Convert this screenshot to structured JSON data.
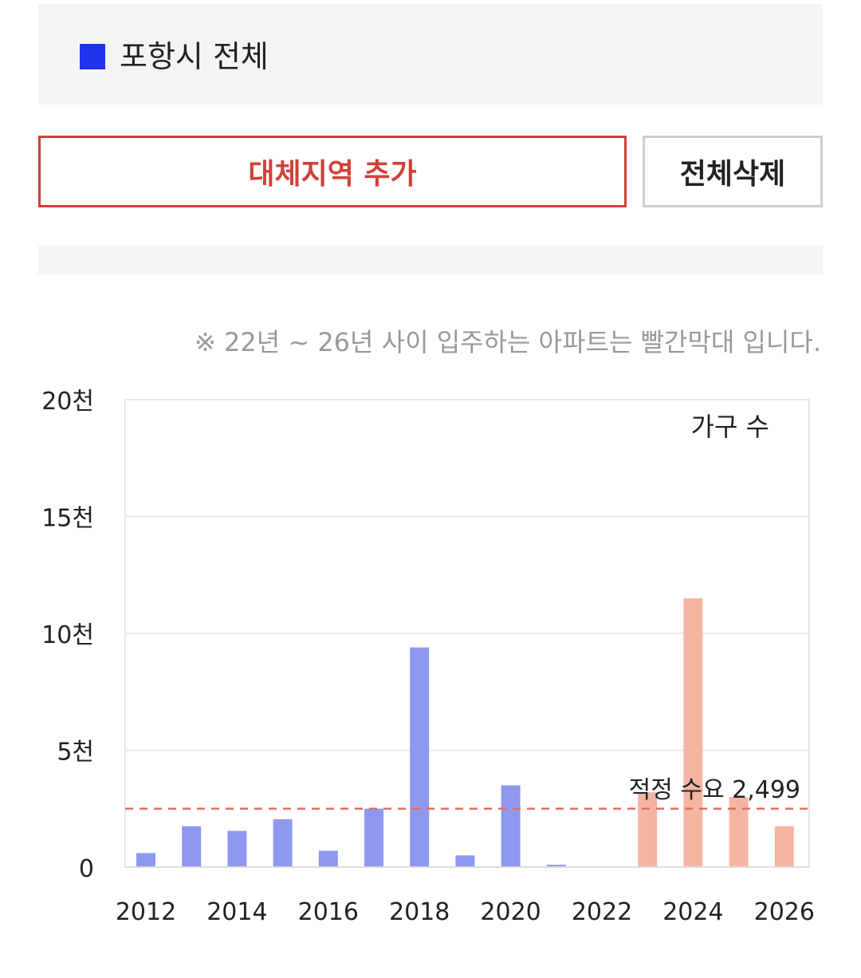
{
  "region": {
    "label": "포항시 전체",
    "color": "#2233ee"
  },
  "buttons": {
    "add_label": "대체지역 추가",
    "clear_label": "전체삭제"
  },
  "notice": "※ 22년 ~ 26년 사이 입주하는 아파트는 빨간막대 입니다.",
  "chart_data": {
    "type": "bar",
    "legend_label": "가구 수",
    "categories": [
      "2012",
      "2013",
      "2014",
      "2015",
      "2016",
      "2017",
      "2018",
      "2019",
      "2020",
      "2021",
      "2022",
      "2023",
      "2024",
      "2025",
      "2026"
    ],
    "values": [
      600,
      1750,
      1550,
      2050,
      700,
      2500,
      9400,
      500,
      3500,
      100,
      0,
      3200,
      11500,
      3000,
      1750
    ],
    "highlight_from": "2022",
    "colors": {
      "past": "#8f98ef",
      "future": "#f4b5a3",
      "reference": "#e07060"
    },
    "y_ticks": [
      {
        "value": 0,
        "label": "0"
      },
      {
        "value": 5000,
        "label": "5천"
      },
      {
        "value": 10000,
        "label": "10천"
      },
      {
        "value": 15000,
        "label": "15천"
      },
      {
        "value": 20000,
        "label": "20천"
      }
    ],
    "x_tick_labels": [
      "2012",
      "2014",
      "2016",
      "2018",
      "2020",
      "2022",
      "2024",
      "2026"
    ],
    "ylim": [
      0,
      20000
    ],
    "reference_line": {
      "value": 2499,
      "label": "적정 수요 2,499"
    }
  }
}
